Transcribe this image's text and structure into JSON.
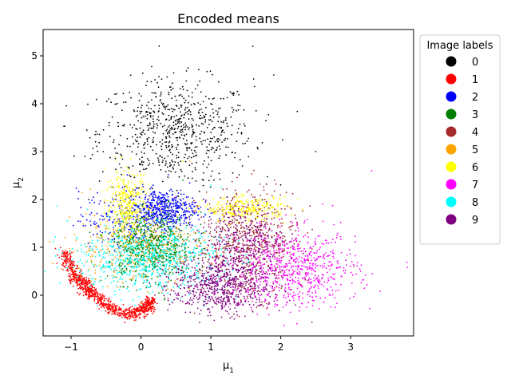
{
  "chart_data": {
    "type": "scatter",
    "title": "Encoded means",
    "xlabel": "μ1",
    "ylabel": "μ2",
    "xlim": [
      -1.4,
      3.9
    ],
    "ylim": [
      -0.85,
      5.55
    ],
    "xticks": [
      -1,
      0,
      1,
      2,
      3
    ],
    "yticks": [
      0,
      1,
      2,
      3,
      4,
      5
    ],
    "grid": false,
    "legend": {
      "title": "Image labels",
      "placement": "outside-right-top"
    },
    "series": [
      {
        "name": "0",
        "color": "#000000",
        "clusters": [
          {
            "center": [
              0.5,
              3.4
            ],
            "spread": [
              0.55,
              0.55
            ],
            "n": 700
          }
        ],
        "points_sample": [
          [
            -0.8,
            2.9
          ],
          [
            0.2,
            4.5
          ],
          [
            0.5,
            3.4
          ],
          [
            1.0,
            4.0
          ],
          [
            1.6,
            5.2
          ],
          [
            1.9,
            4.6
          ],
          [
            2.5,
            3.0
          ],
          [
            0.4,
            2.6
          ]
        ]
      },
      {
        "name": "1",
        "color": "#ff0000",
        "clusters": [
          {
            "path": [
              [
                -1.1,
                0.9
              ],
              [
                -0.95,
                0.4
              ],
              [
                -0.75,
                0.1
              ],
              [
                -0.5,
                -0.2
              ],
              [
                -0.2,
                -0.42
              ],
              [
                0.05,
                -0.3
              ],
              [
                0.15,
                -0.1
              ]
            ],
            "spread": [
              0.05,
              0.06
            ],
            "n": 900
          }
        ],
        "points_sample": [
          [
            -1.1,
            0.9
          ],
          [
            -0.9,
            0.3
          ],
          [
            -0.5,
            -0.2
          ],
          [
            -0.15,
            -0.45
          ],
          [
            0.1,
            -0.2
          ]
        ]
      },
      {
        "name": "2",
        "color": "#0000ff",
        "clusters": [
          {
            "center": [
              0.3,
              1.8
            ],
            "spread": [
              0.25,
              0.2
            ],
            "n": 500
          },
          {
            "center": [
              -0.2,
              1.6
            ],
            "spread": [
              0.35,
              0.3
            ],
            "n": 200
          }
        ],
        "points_sample": [
          [
            0.3,
            1.9
          ],
          [
            0.2,
            1.7
          ],
          [
            -0.4,
            2.0
          ],
          [
            0.5,
            1.5
          ]
        ]
      },
      {
        "name": "3",
        "color": "#008000",
        "clusters": [
          {
            "center": [
              0.15,
              1.0
            ],
            "spread": [
              0.3,
              0.35
            ],
            "n": 700
          }
        ],
        "points_sample": [
          [
            0.0,
            0.8
          ],
          [
            0.3,
            1.2
          ],
          [
            0.6,
            2.4
          ],
          [
            -0.3,
            0.6
          ]
        ]
      },
      {
        "name": "4",
        "color": "#a52a2a",
        "clusters": [
          {
            "center": [
              1.55,
              1.1
            ],
            "spread": [
              0.35,
              0.55
            ],
            "n": 600
          }
        ],
        "points_sample": [
          [
            1.8,
            1.7
          ],
          [
            1.4,
            0.8
          ],
          [
            1.2,
            0.3
          ],
          [
            2.0,
            1.5
          ]
        ]
      },
      {
        "name": "5",
        "color": "#ffa500",
        "clusters": [
          {
            "center": [
              -0.1,
              1.0
            ],
            "spread": [
              0.5,
              0.4
            ],
            "n": 300
          }
        ],
        "points_sample": [
          [
            -0.3,
            0.8
          ],
          [
            0.3,
            1.3
          ],
          [
            0.7,
            2.8
          ],
          [
            -0.6,
            1.2
          ]
        ]
      },
      {
        "name": "6",
        "color": "#ffff00",
        "clusters": [
          {
            "center": [
              -0.2,
              1.9
            ],
            "spread": [
              0.15,
              0.35
            ],
            "n": 350
          },
          {
            "center": [
              1.5,
              1.8
            ],
            "spread": [
              0.3,
              0.12
            ],
            "n": 250
          }
        ],
        "points_sample": [
          [
            -0.2,
            2.1
          ],
          [
            -0.25,
            1.4
          ],
          [
            1.3,
            1.7
          ],
          [
            1.6,
            1.9
          ],
          [
            0.6,
            2.8
          ]
        ]
      },
      {
        "name": "7",
        "color": "#ff00ff",
        "clusters": [
          {
            "center": [
              2.2,
              0.55
            ],
            "spread": [
              0.45,
              0.4
            ],
            "n": 700
          }
        ],
        "points_sample": [
          [
            2.2,
            0.5
          ],
          [
            2.8,
            1.2
          ],
          [
            3.3,
            2.6
          ],
          [
            1.5,
            -0.1
          ],
          [
            2.6,
            1.9
          ]
        ]
      },
      {
        "name": "8",
        "color": "#00ffff",
        "clusters": [
          {
            "center": [
              0.1,
              0.75
            ],
            "spread": [
              0.55,
              0.35
            ],
            "n": 700
          }
        ],
        "points_sample": [
          [
            -0.6,
            0.9
          ],
          [
            0.1,
            0.3
          ],
          [
            0.6,
            0.6
          ],
          [
            1.0,
            2.3
          ]
        ]
      },
      {
        "name": "9",
        "color": "#800080",
        "clusters": [
          {
            "center": [
              1.15,
              0.2
            ],
            "spread": [
              0.35,
              0.3
            ],
            "n": 700
          },
          {
            "center": [
              1.5,
              1.2
            ],
            "spread": [
              0.3,
              0.4
            ],
            "n": 300
          }
        ],
        "points_sample": [
          [
            0.7,
            -0.1
          ],
          [
            1.2,
            0.2
          ],
          [
            1.4,
            0.9
          ],
          [
            1.8,
            1.6
          ]
        ]
      }
    ]
  }
}
